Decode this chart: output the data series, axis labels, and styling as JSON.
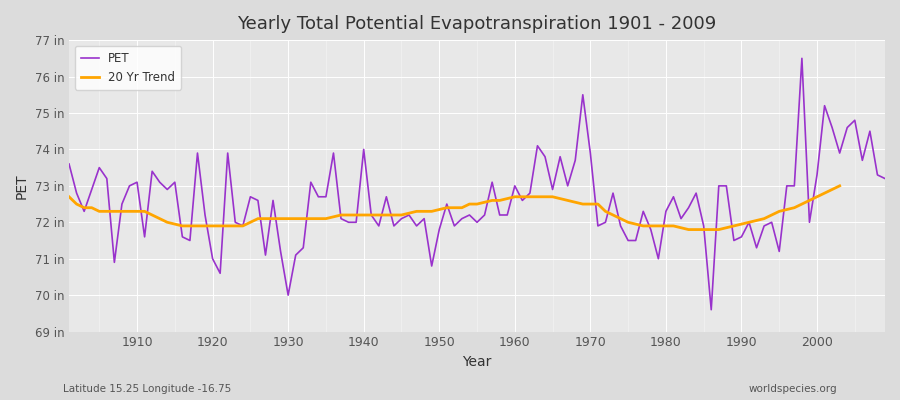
{
  "title": "Yearly Total Potential Evapotranspiration 1901 - 2009",
  "xlabel": "Year",
  "ylabel": "PET",
  "subtitle_left": "Latitude 15.25 Longitude -16.75",
  "subtitle_right": "worldspecies.org",
  "ylim": [
    69,
    77
  ],
  "yticks": [
    69,
    70,
    71,
    72,
    73,
    74,
    75,
    76,
    77
  ],
  "ytick_labels": [
    "69 in",
    "70 in",
    "71 in",
    "72 in",
    "73 in",
    "74 in",
    "75 in",
    "76 in",
    "77 in"
  ],
  "xlim": [
    1901,
    2009
  ],
  "pet_color": "#9932CC",
  "trend_color": "#FFA500",
  "background_color": "#E8E8E8",
  "legend_pet": "PET",
  "legend_trend": "20 Yr Trend",
  "years": [
    1901,
    1902,
    1903,
    1904,
    1905,
    1906,
    1907,
    1908,
    1909,
    1910,
    1911,
    1912,
    1913,
    1914,
    1915,
    1916,
    1917,
    1918,
    1919,
    1920,
    1921,
    1922,
    1923,
    1924,
    1925,
    1926,
    1927,
    1928,
    1929,
    1930,
    1931,
    1932,
    1933,
    1934,
    1935,
    1936,
    1937,
    1938,
    1939,
    1940,
    1941,
    1942,
    1943,
    1944,
    1945,
    1946,
    1947,
    1948,
    1949,
    1950,
    1951,
    1952,
    1953,
    1954,
    1955,
    1956,
    1957,
    1958,
    1959,
    1960,
    1961,
    1962,
    1963,
    1964,
    1965,
    1966,
    1967,
    1968,
    1969,
    1970,
    1971,
    1972,
    1973,
    1974,
    1975,
    1976,
    1977,
    1978,
    1979,
    1980,
    1981,
    1982,
    1983,
    1984,
    1985,
    1986,
    1987,
    1988,
    1989,
    1990,
    1991,
    1992,
    1993,
    1994,
    1995,
    1996,
    1997,
    1998,
    1999,
    2000,
    2001,
    2002,
    2003,
    2004,
    2005,
    2006,
    2007,
    2008,
    2009
  ],
  "pet_values": [
    73.6,
    72.8,
    72.3,
    72.9,
    73.5,
    73.2,
    70.9,
    72.5,
    73.0,
    73.1,
    71.6,
    73.4,
    73.1,
    72.9,
    73.1,
    71.6,
    71.5,
    73.9,
    72.2,
    71.0,
    70.6,
    73.9,
    72.0,
    71.9,
    72.7,
    72.6,
    71.1,
    72.6,
    71.2,
    70.0,
    71.1,
    71.3,
    73.1,
    72.7,
    72.7,
    73.9,
    72.1,
    72.0,
    72.0,
    74.0,
    72.2,
    71.9,
    72.7,
    71.9,
    72.1,
    72.2,
    71.9,
    72.1,
    70.8,
    71.8,
    72.5,
    71.9,
    72.1,
    72.2,
    72.0,
    72.2,
    73.1,
    72.2,
    72.2,
    73.0,
    72.6,
    72.8,
    74.1,
    73.8,
    72.9,
    73.8,
    73.0,
    73.7,
    75.5,
    73.9,
    71.9,
    72.0,
    72.8,
    71.9,
    71.5,
    71.5,
    72.3,
    71.8,
    71.0,
    72.3,
    72.7,
    72.1,
    72.4,
    72.8,
    71.9,
    69.6,
    73.0,
    73.0,
    71.5,
    71.6,
    72.0,
    71.3,
    71.9,
    72.0,
    71.2,
    73.0,
    73.0,
    76.5,
    72.0,
    73.3,
    75.2,
    74.6,
    73.9,
    74.6,
    74.8,
    73.7,
    74.5,
    73.3,
    73.2
  ],
  "trend_values": [
    72.7,
    72.5,
    72.4,
    72.4,
    72.3,
    72.3,
    72.3,
    72.3,
    72.3,
    72.3,
    72.3,
    72.2,
    72.1,
    72.0,
    71.95,
    71.9,
    71.9,
    71.9,
    71.9,
    71.9,
    71.9,
    71.9,
    71.9,
    71.9,
    72.0,
    72.1,
    72.1,
    72.1,
    72.1,
    72.1,
    72.1,
    72.1,
    72.1,
    72.1,
    72.1,
    72.15,
    72.2,
    72.2,
    72.2,
    72.2,
    72.2,
    72.2,
    72.2,
    72.2,
    72.2,
    72.25,
    72.3,
    72.3,
    72.3,
    72.35,
    72.4,
    72.4,
    72.4,
    72.5,
    72.5,
    72.55,
    72.6,
    72.6,
    72.65,
    72.7,
    72.7,
    72.7,
    72.7,
    72.7,
    72.7,
    72.65,
    72.6,
    72.55,
    72.5,
    72.5,
    72.5,
    72.3,
    72.2,
    72.1,
    72.0,
    71.95,
    71.9,
    71.9,
    71.9,
    71.9,
    71.9,
    71.85,
    71.8,
    71.8,
    71.8,
    71.8,
    71.8,
    71.85,
    71.9,
    71.95,
    72.0,
    72.05,
    72.1,
    72.2,
    72.3,
    72.35,
    72.4,
    72.5,
    72.6,
    72.7,
    72.8,
    72.9,
    73.0,
    null,
    null,
    null,
    null,
    null,
    null
  ]
}
